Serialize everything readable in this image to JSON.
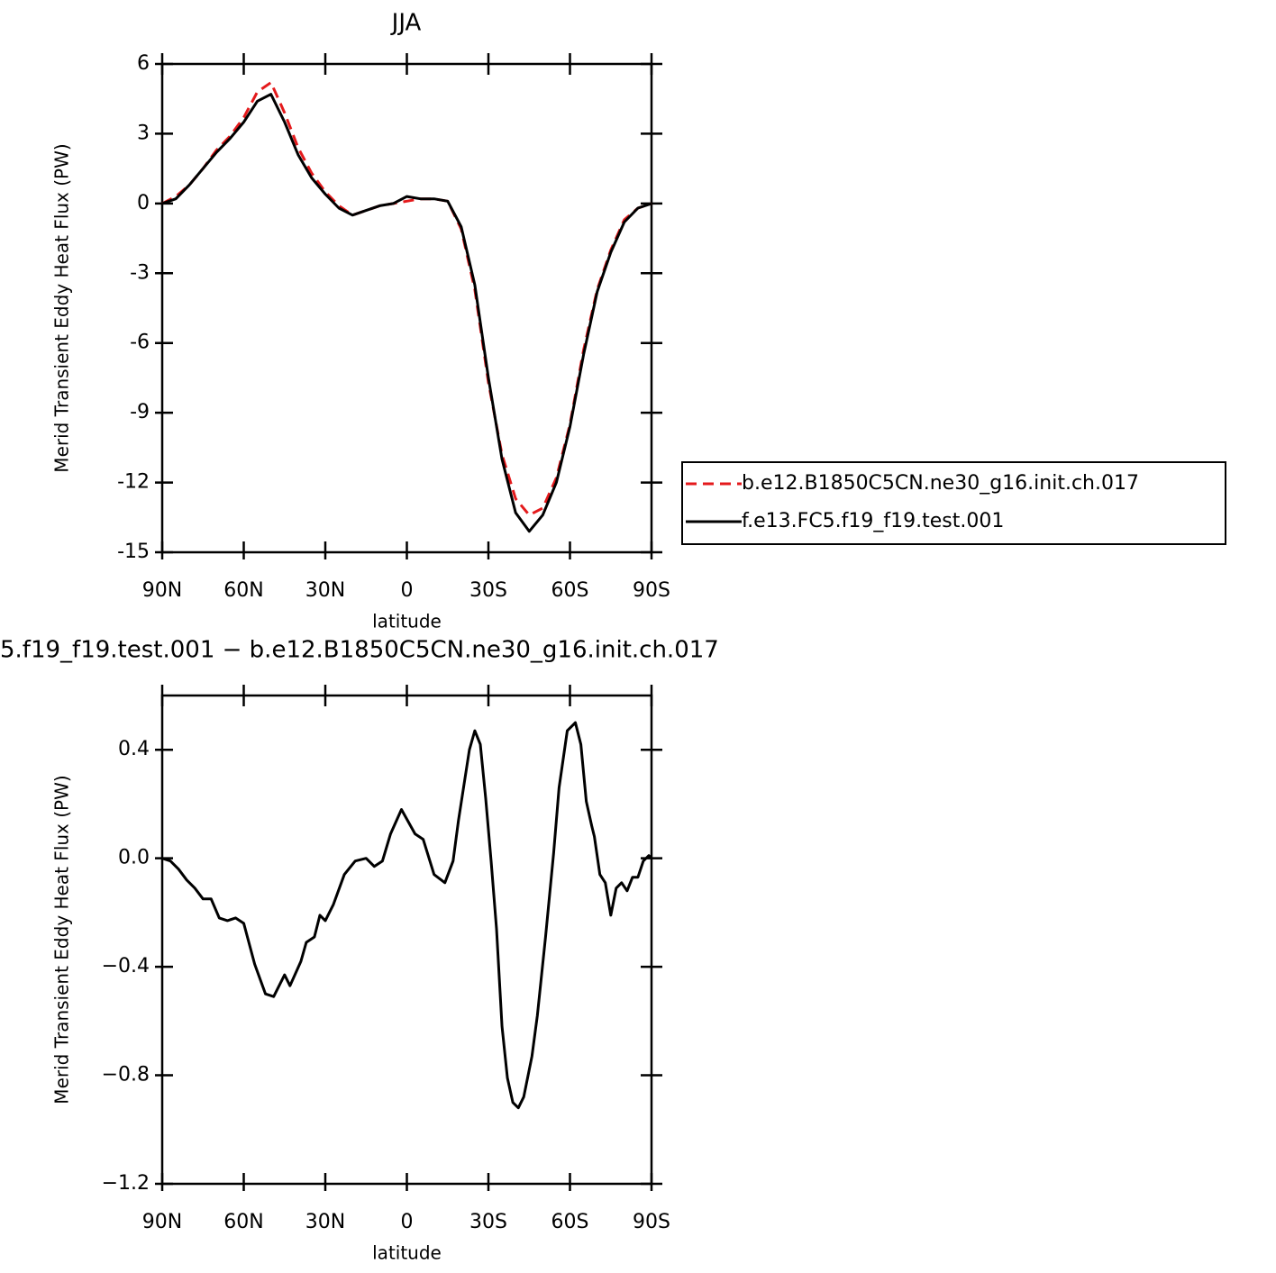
{
  "chart_data": [
    {
      "type": "line",
      "title": "JJA",
      "xlabel": "latitude",
      "ylabel": "Merid Transient Eddy Heat Flux (PW)",
      "x": [
        90,
        85,
        80,
        75,
        70,
        65,
        60,
        55,
        50,
        45,
        40,
        35,
        30,
        25,
        20,
        15,
        10,
        5,
        0,
        -5,
        -10,
        -15,
        -20,
        -25,
        -30,
        -35,
        -40,
        -45,
        -50,
        -55,
        -60,
        -65,
        -70,
        -75,
        -80,
        -85,
        -90
      ],
      "series": [
        {
          "name": "b.e12.B1850C5CN.ne30_g16.init.ch.017",
          "color": "#e41a1c",
          "dash": true,
          "values": [
            0,
            0.3,
            0.8,
            1.5,
            2.3,
            2.9,
            3.7,
            4.8,
            5.2,
            3.9,
            2.4,
            1.3,
            0.5,
            -0.1,
            -0.5,
            -0.3,
            -0.1,
            0,
            0.1,
            0.2,
            0.2,
            0.1,
            -1.1,
            -3.7,
            -7.7,
            -10.8,
            -12.7,
            -13.4,
            -13.1,
            -11.8,
            -9.5,
            -6.3,
            -3.7,
            -2,
            -0.7,
            -0.2,
            0
          ]
        },
        {
          "name": "f.e13.FC5.f19_f19.test.001",
          "color": "#000000",
          "dash": false,
          "values": [
            0,
            0.2,
            0.8,
            1.5,
            2.2,
            2.8,
            3.5,
            4.4,
            4.7,
            3.5,
            2.1,
            1.1,
            0.4,
            -0.2,
            -0.5,
            -0.3,
            -0.1,
            0,
            0.3,
            0.2,
            0.2,
            0.1,
            -1,
            -3.5,
            -7.5,
            -11,
            -13.3,
            -14.1,
            -13.4,
            -12,
            -9.6,
            -6.5,
            -3.8,
            -2.1,
            -0.8,
            -0.2,
            0
          ]
        }
      ],
      "xlim": [
        90,
        -90
      ],
      "xticks": [
        {
          "value": 90,
          "label": "90N"
        },
        {
          "value": 60,
          "label": "60N"
        },
        {
          "value": 30,
          "label": "30N"
        },
        0,
        {
          "value": -30,
          "label": "30S"
        },
        {
          "value": -60,
          "label": "60S"
        },
        {
          "value": -90,
          "label": "90S"
        }
      ],
      "ylim": [
        -15,
        6
      ],
      "yticks": [
        -15,
        -12,
        -9,
        -6,
        -3,
        0,
        3,
        6
      ],
      "legend": "right"
    },
    {
      "type": "line",
      "title": "5.f19_f19.test.001 − b.e12.B1850C5CN.ne30_g16.init.ch.017",
      "xlabel": "latitude",
      "ylabel": "Merid Transient Eddy Heat Flux (PW)",
      "x": [
        90,
        87,
        84,
        81,
        78,
        75,
        72,
        69,
        66,
        63,
        60,
        56,
        52,
        49,
        45,
        43,
        39,
        37,
        34,
        32,
        30,
        27,
        23,
        19,
        15,
        12,
        9,
        6,
        2,
        -3,
        -6,
        -10,
        -14,
        -17,
        -19,
        -23,
        -25,
        -27,
        -29,
        -31,
        -33,
        -35,
        -37,
        -39,
        -41,
        -43,
        -46,
        -48,
        -51,
        -54,
        -56,
        -59,
        -62,
        -64,
        -66,
        -68,
        -69,
        -71,
        -73,
        -75,
        -77,
        -79,
        -81,
        -83,
        -85,
        -87,
        -89,
        -90
      ],
      "series": [
        {
          "color": "#000000",
          "values": [
            0,
            -0.01,
            -0.04,
            -0.08,
            -0.11,
            -0.15,
            -0.15,
            -0.22,
            -0.23,
            -0.22,
            -0.24,
            -0.39,
            -0.5,
            -0.51,
            -0.43,
            -0.47,
            -0.38,
            -0.31,
            -0.29,
            -0.21,
            -0.23,
            -0.17,
            -0.06,
            -0.01,
            0,
            -0.03,
            -0.01,
            0.09,
            0.18,
            0.09,
            0.07,
            -0.06,
            -0.09,
            -0.01,
            0.14,
            0.4,
            0.47,
            0.42,
            0.22,
            -0.01,
            -0.26,
            -0.62,
            -0.81,
            -0.9,
            -0.92,
            -0.88,
            -0.73,
            -0.58,
            -0.29,
            0.02,
            0.26,
            0.47,
            0.5,
            0.42,
            0.21,
            0.12,
            0.08,
            -0.06,
            -0.09,
            -0.21,
            -0.11,
            -0.09,
            -0.12,
            -0.07,
            -0.07,
            -0.01,
            0.01,
            0
          ]
        }
      ],
      "xlim": [
        90,
        -90
      ],
      "xticks": [
        {
          "value": 90,
          "label": "90N"
        },
        {
          "value": 60,
          "label": "60N"
        },
        {
          "value": 30,
          "label": "30N"
        },
        0,
        {
          "value": -30,
          "label": "30S"
        },
        {
          "value": -60,
          "label": "60S"
        },
        {
          "value": -90,
          "label": "90S"
        }
      ],
      "ylim": [
        -1.2,
        0.6
      ],
      "yticks": [
        {
          "value": -1.2,
          "label": "−1.2"
        },
        {
          "value": -0.8,
          "label": "−0.8"
        },
        {
          "value": -0.4,
          "label": "−0.4"
        },
        {
          "value": 0,
          "label": "0.0"
        },
        0.4
      ]
    }
  ]
}
